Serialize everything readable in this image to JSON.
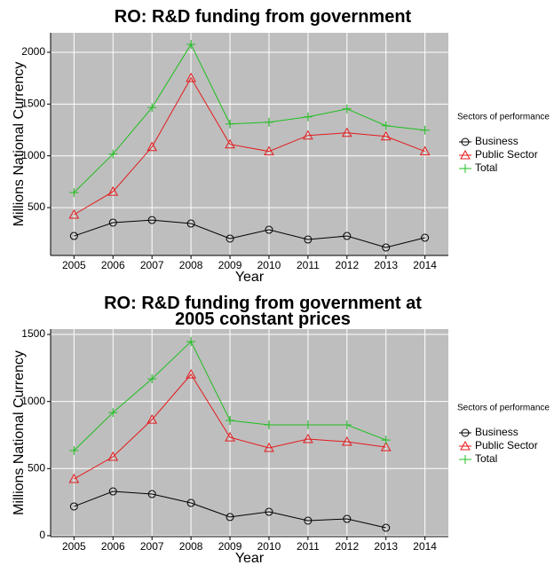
{
  "chart_data": [
    {
      "type": "line",
      "title": "RO: R&D funding from government",
      "x_label": "Year",
      "y_label": "Millions National Currency",
      "legend_title": "Sectors of performance",
      "categories": [
        "2005",
        "2006",
        "2007",
        "2008",
        "2009",
        "2010",
        "2011",
        "2012",
        "2013",
        "2014"
      ],
      "ylim": [
        38,
        2188
      ],
      "yticks": [
        500,
        1000,
        1500,
        2000
      ],
      "grid": true,
      "legend": "right",
      "series": [
        {
          "name": "Business",
          "color": "#000000",
          "marker": "circle",
          "values": [
            226,
            355,
            380,
            346,
            201,
            286,
            192,
            226,
            115,
            209
          ]
        },
        {
          "name": "Public Sector",
          "color": "#e41a1c",
          "marker": "triangle",
          "values": [
            432,
            654,
            1085,
            1752,
            1111,
            1043,
            1197,
            1222,
            1188,
            1043
          ]
        },
        {
          "name": "Total",
          "color": "#1fbf1f",
          "marker": "plus",
          "values": [
            645,
            1017,
            1466,
            2077,
            1308,
            1325,
            1376,
            1453,
            1291,
            1248
          ]
        }
      ]
    },
    {
      "type": "line",
      "title": "RO: R&D funding from government at 2005 constant prices",
      "x_label": "Year",
      "y_label": "Millions National Currency",
      "legend_title": "Sectors of performance",
      "categories": [
        "2005",
        "2006",
        "2007",
        "2008",
        "2009",
        "2010",
        "2011",
        "2012",
        "2013",
        "2014"
      ],
      "ylim": [
        -7,
        1540
      ],
      "yticks": [
        0,
        500,
        1000,
        1500
      ],
      "grid": true,
      "legend": "right",
      "series": [
        {
          "name": "Business",
          "color": "#000000",
          "marker": "circle",
          "values": [
            218,
            330,
            310,
            244,
            139,
            178,
            112,
            125,
            59,
            null
          ]
        },
        {
          "name": "Public Sector",
          "color": "#e41a1c",
          "marker": "triangle",
          "values": [
            423,
            588,
            865,
            1202,
            733,
            654,
            720,
            700,
            660,
            null
          ]
        },
        {
          "name": "Total",
          "color": "#1fbf1f",
          "marker": "plus",
          "values": [
            634,
            918,
            1169,
            1447,
            859,
            826,
            826,
            826,
            713,
            null
          ]
        }
      ]
    }
  ]
}
